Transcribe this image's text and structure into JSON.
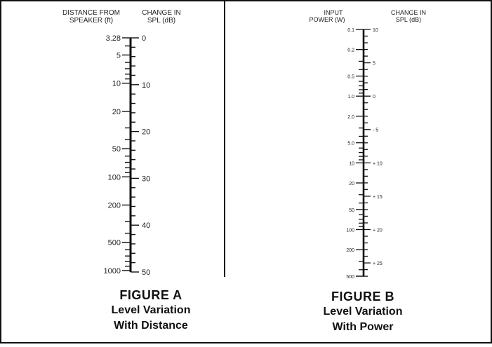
{
  "figure_a": {
    "left_header": [
      "DISTANCE FROM",
      "SPEAKER (ft)"
    ],
    "right_header": [
      "CHANGE IN",
      "SPL (dB)"
    ],
    "left_scale": [
      "3.28",
      "5",
      "10",
      "20",
      "50",
      "100",
      "200",
      "500",
      "1000"
    ],
    "right_scale": [
      "0",
      "10",
      "20",
      "30",
      "40",
      "50"
    ],
    "caption": {
      "title": "FIGURE A",
      "line1": "Level Variation",
      "line2": "With Distance"
    }
  },
  "figure_b": {
    "left_header": [
      "INPUT",
      "POWER (W)"
    ],
    "right_header": [
      "CHANGE IN",
      "SPL (dB)"
    ],
    "left_scale": [
      "0.1",
      "0.2",
      "0.5",
      "1.0",
      "2.0",
      "5.0",
      "10",
      "20",
      "50",
      "100",
      "200",
      "500"
    ],
    "right_scale": [
      "10",
      "5",
      "0",
      "- 5",
      "+ 10",
      "+ 15",
      "+ 20",
      "+ 25"
    ],
    "caption": {
      "title": "FIGURE B",
      "line1": "Level Variation",
      "line2": "With Power"
    }
  }
}
